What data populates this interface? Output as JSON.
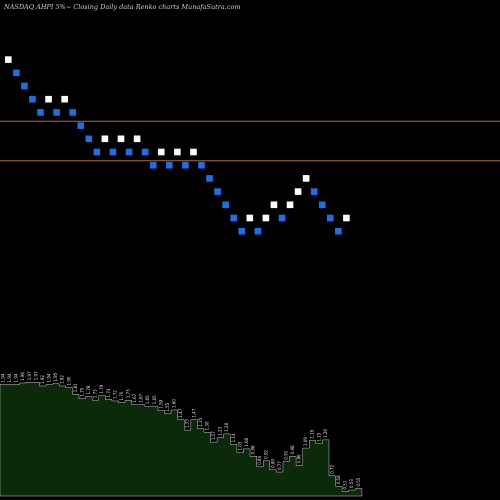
{
  "header": {
    "title": "NASDAQ AHPI 5%~  Closing Daily data  Renko  charts MunafaSutra.com"
  },
  "colors": {
    "background": "#000000",
    "brick_up": "#ffffff",
    "brick_down": "#1c6fe6",
    "reference_line": "#b8652a",
    "volume_fill": "#0a2a0a",
    "volume_edge": "#ffffff",
    "label": "#e6e6e6"
  },
  "chart_data": {
    "type": "renko",
    "price_range": [
      0.5,
      2.1
    ],
    "reference_lines": [
      1.64,
      1.46
    ],
    "bricks": [
      {
        "level": 1.92,
        "dir": "up"
      },
      {
        "level": 1.86,
        "dir": "down"
      },
      {
        "level": 1.8,
        "dir": "down"
      },
      {
        "level": 1.74,
        "dir": "down"
      },
      {
        "level": 1.68,
        "dir": "down"
      },
      {
        "level": 1.74,
        "dir": "up"
      },
      {
        "level": 1.68,
        "dir": "down"
      },
      {
        "level": 1.74,
        "dir": "up"
      },
      {
        "level": 1.68,
        "dir": "down"
      },
      {
        "level": 1.62,
        "dir": "down"
      },
      {
        "level": 1.56,
        "dir": "down"
      },
      {
        "level": 1.5,
        "dir": "down"
      },
      {
        "level": 1.56,
        "dir": "up"
      },
      {
        "level": 1.5,
        "dir": "down"
      },
      {
        "level": 1.56,
        "dir": "up"
      },
      {
        "level": 1.5,
        "dir": "down"
      },
      {
        "level": 1.56,
        "dir": "up"
      },
      {
        "level": 1.5,
        "dir": "down"
      },
      {
        "level": 1.44,
        "dir": "down"
      },
      {
        "level": 1.5,
        "dir": "up"
      },
      {
        "level": 1.44,
        "dir": "down"
      },
      {
        "level": 1.5,
        "dir": "up"
      },
      {
        "level": 1.44,
        "dir": "down"
      },
      {
        "level": 1.5,
        "dir": "up"
      },
      {
        "level": 1.44,
        "dir": "down"
      },
      {
        "level": 1.38,
        "dir": "down"
      },
      {
        "level": 1.32,
        "dir": "down"
      },
      {
        "level": 1.26,
        "dir": "down"
      },
      {
        "level": 1.2,
        "dir": "down"
      },
      {
        "level": 1.14,
        "dir": "down"
      },
      {
        "level": 1.2,
        "dir": "up"
      },
      {
        "level": 1.14,
        "dir": "down"
      },
      {
        "level": 1.2,
        "dir": "up"
      },
      {
        "level": 1.26,
        "dir": "up"
      },
      {
        "level": 1.2,
        "dir": "down"
      },
      {
        "level": 1.26,
        "dir": "up"
      },
      {
        "level": 1.32,
        "dir": "up"
      },
      {
        "level": 1.38,
        "dir": "up"
      },
      {
        "level": 1.32,
        "dir": "down"
      },
      {
        "level": 1.26,
        "dir": "down"
      },
      {
        "level": 1.2,
        "dir": "down"
      },
      {
        "level": 1.14,
        "dir": "down"
      },
      {
        "level": 1.2,
        "dir": "up"
      }
    ],
    "volume_labels": [
      "1.94",
      "1.94",
      "1.94",
      "1.96",
      "1.97",
      "1.97",
      "1.92",
      "1.94",
      "1.95",
      "1.92",
      "1.90",
      "1.81",
      "1.75",
      "1.78",
      "1.73",
      "1.79",
      "1.74",
      "1.72",
      "1.70",
      "1.73",
      "1.67",
      "1.67",
      "1.65",
      "1.65",
      "1.59",
      "1.55",
      "1.60",
      "1.47",
      "1.33",
      "1.47",
      "1.35",
      "1.30",
      "1.17",
      "1.23",
      "1.28",
      "1.14",
      "1.03",
      "1.08",
      "0.98",
      "0.84",
      "0.92",
      "0.80",
      "0.77",
      "0.91",
      "0.98",
      "0.86",
      "1.09",
      "1.19",
      "1.15",
      "1.20",
      "0.72",
      "0.58",
      "0.51",
      "0.53",
      "0.55"
    ]
  }
}
